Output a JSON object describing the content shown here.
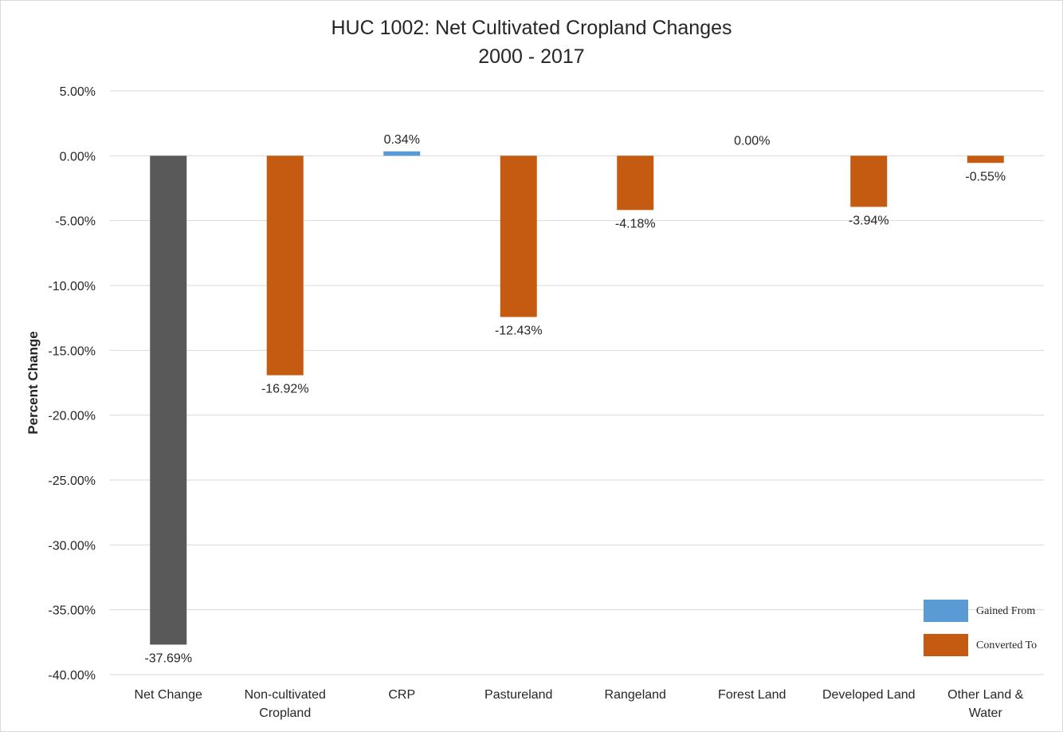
{
  "chart_data": {
    "type": "bar",
    "title": "HUC 1002: Net Cultivated Cropland Changes",
    "subtitle": "2000 - 2017",
    "xlabel": "",
    "ylabel": "Percent Change",
    "ylim": [
      -40,
      5
    ],
    "ytick_step": 5,
    "ytick_labels": [
      "5.00%",
      "0.00%",
      "-5.00%",
      "-10.00%",
      "-15.00%",
      "-20.00%",
      "-25.00%",
      "-30.00%",
      "-35.00%",
      "-40.00%"
    ],
    "grid": true,
    "legend_position": "bottom-right",
    "categories": [
      "Net Change",
      "Non-cultivated Cropland",
      "CRP",
      "Pastureland",
      "Rangeland",
      "Forest Land",
      "Developed Land",
      "Other Land & Water"
    ],
    "category_lines": [
      [
        "Net Change"
      ],
      [
        "Non-cultivated",
        "Cropland"
      ],
      [
        "CRP"
      ],
      [
        "Pastureland"
      ],
      [
        "Rangeland"
      ],
      [
        "Forest Land"
      ],
      [
        "Developed Land"
      ],
      [
        "Other Land &",
        "Water"
      ]
    ],
    "values": [
      -37.69,
      -16.92,
      0.34,
      -12.43,
      -4.18,
      0.0,
      -3.94,
      -0.55
    ],
    "data_labels": [
      "-37.69%",
      "-16.92%",
      "0.34%",
      "-12.43%",
      "-4.18%",
      "0.00%",
      "-3.94%",
      "-0.55%"
    ],
    "bar_groups": [
      "net",
      "converted",
      "gained",
      "converted",
      "converted",
      "gained",
      "converted",
      "converted"
    ],
    "colors": {
      "net": "#595959",
      "gained": "#5b9bd5",
      "converted": "#c55a11",
      "grid": "#d9d9d9",
      "text": "#262626"
    },
    "legend": [
      {
        "label": "Gained From",
        "group": "gained"
      },
      {
        "label": "Converted To",
        "group": "converted"
      }
    ]
  }
}
